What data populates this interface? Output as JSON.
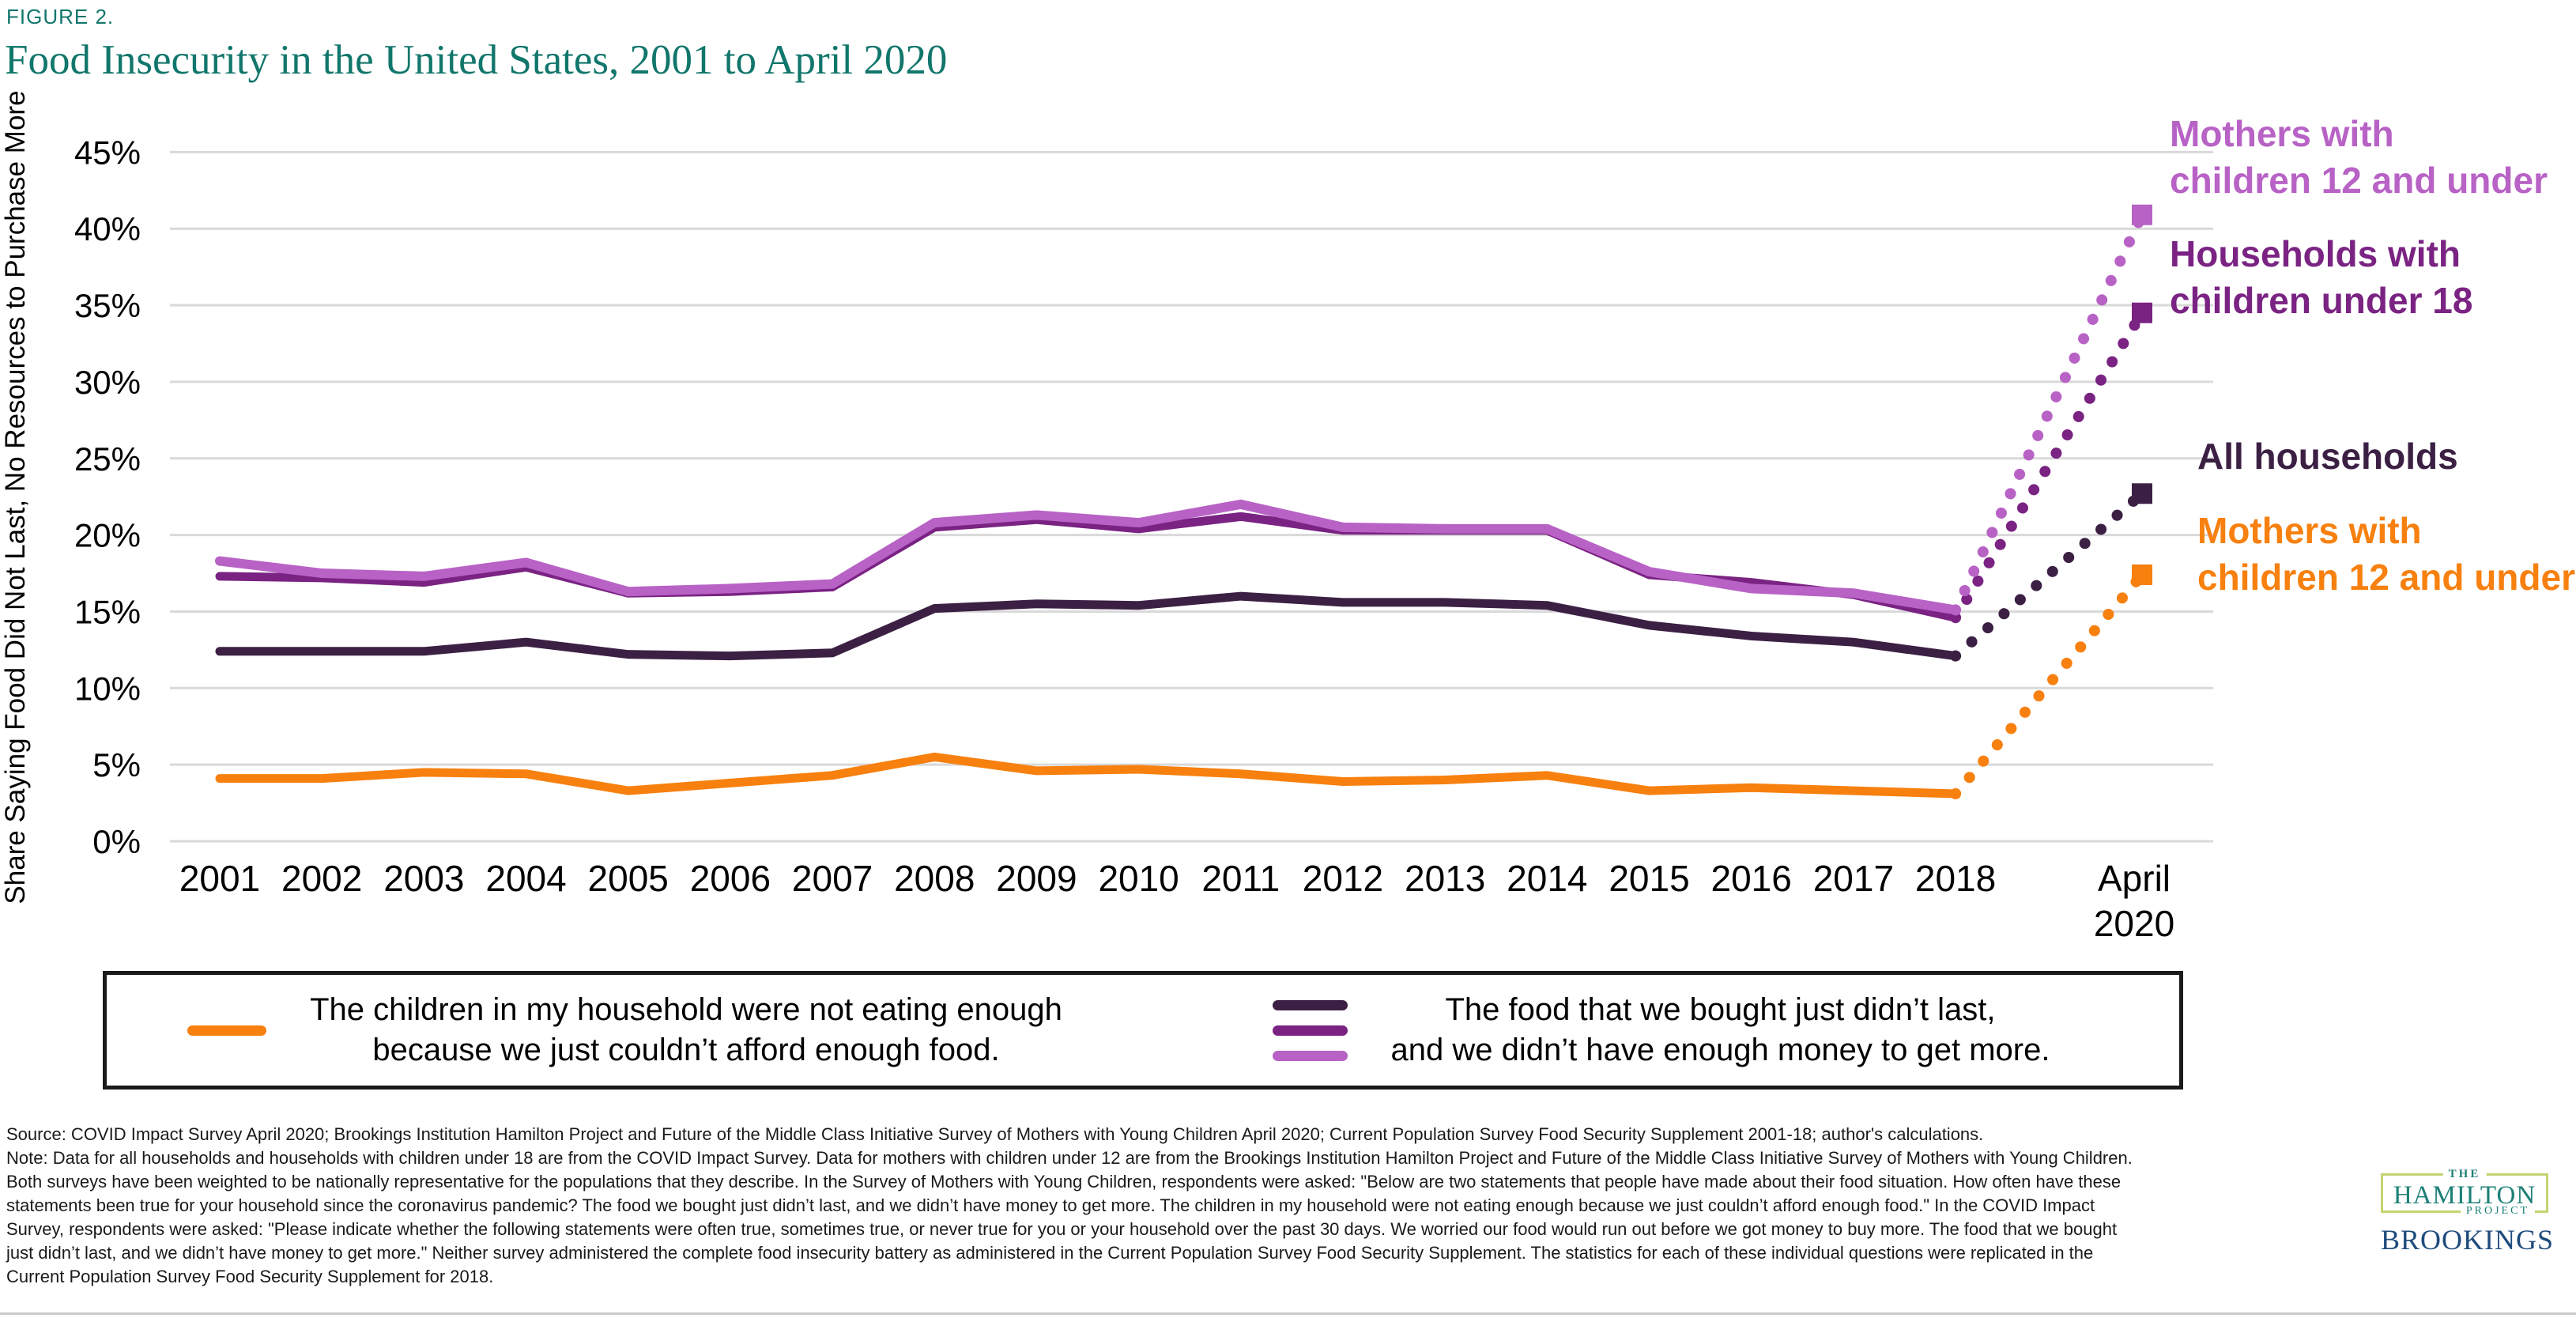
{
  "figure_label": "FIGURE 2.",
  "title": "Food Insecurity in the United States, 2001 to April 2020",
  "y_axis_title": "Share Saying Food Did Not Last, No Resources to Purchase More",
  "colors": {
    "title_teal": "#11766b",
    "gridline": "#d9d9d9",
    "orange": "#f7800f",
    "light_purple": "#b862c6",
    "purple": "#7a2383",
    "dark_plum": "#3c2044",
    "legend_border": "#1a1a1a",
    "logo_teal": "#1d8077",
    "logo_green_border": "#c3d470",
    "brookings_blue": "#1e4b7c"
  },
  "chart_data": {
    "type": "line",
    "categories": [
      "2001",
      "2002",
      "2003",
      "2004",
      "2005",
      "2006",
      "2007",
      "2008",
      "2009",
      "2010",
      "2011",
      "2012",
      "2013",
      "2014",
      "2015",
      "2016",
      "2017",
      "2018",
      "April 2020"
    ],
    "april_label": {
      "line1": "April",
      "line2": "2020"
    },
    "y_axis": {
      "min": 0,
      "max": 45,
      "step": 5,
      "tick_suffix": "%"
    },
    "grid": true,
    "legend_position": "bottom",
    "xlabel": "",
    "ylabel": "Share Saying Food Did Not Last, No Resources to Purchase More",
    "series": [
      {
        "id": "all-households",
        "name": "All households",
        "color": "#3c2044",
        "width": 11,
        "values": [
          12.4,
          12.4,
          12.4,
          13.0,
          12.2,
          12.1,
          12.3,
          15.2,
          15.5,
          15.4,
          16.0,
          15.6,
          15.6,
          15.4,
          14.1,
          13.4,
          13.0,
          12.1
        ],
        "april_2020": 22.7
      },
      {
        "id": "households-children-under-18",
        "name": "Households with children under 18",
        "color": "#7a2383",
        "width": 11,
        "values": [
          17.3,
          17.2,
          16.9,
          17.9,
          16.2,
          16.3,
          16.6,
          20.5,
          21.0,
          20.4,
          21.2,
          20.3,
          20.3,
          20.3,
          17.4,
          16.9,
          16.1,
          14.6
        ],
        "april_2020": 34.5
      },
      {
        "id": "mothers-children-12-under",
        "name": "Mothers with children 12 and under",
        "color": "#b862c6",
        "width": 12,
        "values": [
          18.3,
          17.5,
          17.3,
          18.2,
          16.3,
          16.5,
          16.8,
          20.8,
          21.3,
          20.8,
          22.0,
          20.5,
          20.4,
          20.4,
          17.6,
          16.5,
          16.2,
          15.1
        ],
        "april_2020": 40.9
      },
      {
        "id": "mothers-children-not-eating-enough",
        "name": "Mothers with children 12 and under (children not eating enough)",
        "color": "#f7800f",
        "width": 11,
        "values": [
          4.1,
          4.1,
          4.5,
          4.4,
          3.3,
          3.8,
          4.3,
          5.5,
          4.6,
          4.7,
          4.4,
          3.9,
          4.0,
          4.3,
          3.3,
          3.5,
          3.3,
          3.1
        ],
        "april_2020": 17.4
      }
    ]
  },
  "annotations": [
    {
      "line1": "Mothers with",
      "line2": "children 12 and under"
    },
    {
      "line1": "Households with",
      "line2": "children under 18"
    },
    {
      "line1": "All households",
      "line2": ""
    },
    {
      "line1": "Mothers with",
      "line2": "children 12 and under"
    }
  ],
  "legend": {
    "left": {
      "line1": "The children in my household were not eating enough",
      "line2": "because we just couldn’t afford enough food."
    },
    "right": {
      "line1": "The food that we bought just didn’t last,",
      "line2": "and we didn’t have enough money to get more."
    }
  },
  "notes": {
    "lines": [
      "Source: COVID Impact Survey April 2020; Brookings Institution Hamilton Project and Future of the Middle Class Initiative Survey of Mothers with Young Children April 2020; Current Population Survey Food Security Supplement 2001-18; author's calculations.",
      "Note: Data for all households and households with children under 18 are from the COVID Impact Survey. Data for mothers with children under 12 are from the Brookings Institution Hamilton Project and Future of the Middle Class Initiative Survey of Mothers with Young Children.",
      "Both surveys have been weighted to be nationally representative for the populations that they describe. In the Survey of Mothers with Young Children, respondents were asked: \"Below are two statements that people have made about their food situation. How often have these",
      "statements been true for your household since the coronavirus pandemic? The food we bought just didn’t last, and we didn’t have money to get more. The children in my household were not eating enough because we just couldn’t afford enough food.\" In the COVID Impact",
      "Survey, respondents were asked: \"Please indicate whether the following statements were often true, sometimes true, or never true for you or your household over the past 30 days. We worried our food would run out before we got money to buy more. The food that we bought",
      "just didn’t last, and we didn’t have money to get more.\" Neither survey administered the complete food insecurity battery as administered in the Current Population Survey Food Security Supplement. The statistics for each of these individual questions were replicated in the",
      "Current Population Survey Food Security Supplement for 2018."
    ]
  },
  "logo": {
    "the": "THE",
    "hamilton": "HAMILTON",
    "project": "PROJECT",
    "brookings": "BROOKINGS"
  }
}
